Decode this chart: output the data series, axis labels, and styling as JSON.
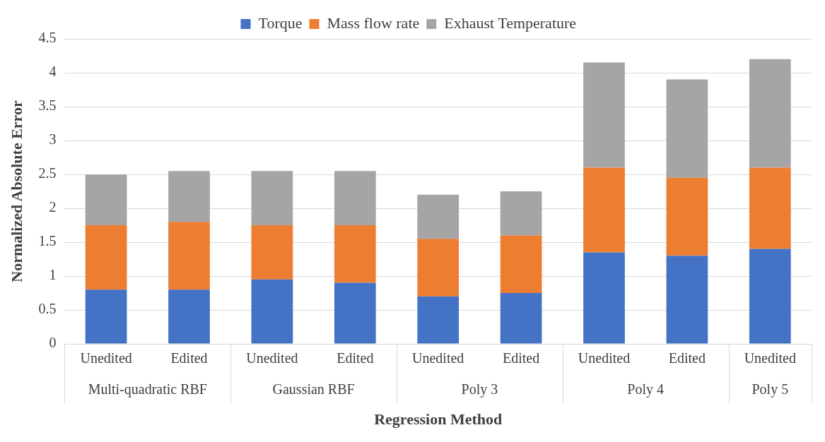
{
  "chart_data": {
    "type": "bar",
    "stacked": true,
    "xlabel": "Regression Method",
    "ylabel": "Normalized Absolute Error",
    "categories": [
      "Unedited",
      "Edited",
      "Unedited",
      "Edited",
      "Unedited",
      "Edited",
      "Unedited",
      "Edited",
      "Unedited"
    ],
    "annotations": [
      "Multi-quadratic RBF",
      "Gaussian RBF",
      "Poly 3",
      "Poly 4",
      "Poly 5"
    ],
    "series": [
      {
        "name": "Torque",
        "color": "#4472c4",
        "values": [
          0.8,
          0.8,
          0.95,
          0.9,
          0.7,
          0.75,
          1.35,
          1.3,
          1.4
        ]
      },
      {
        "name": "Mass flow rate",
        "color": "#ed7d31",
        "values": [
          0.95,
          1.0,
          0.8,
          0.85,
          0.85,
          0.85,
          1.25,
          1.15,
          1.2
        ]
      },
      {
        "name": "Exhaust Temperature",
        "color": "#a5a5a5",
        "values": [
          0.75,
          0.75,
          0.8,
          0.8,
          0.65,
          0.65,
          1.55,
          1.45,
          1.6
        ]
      }
    ],
    "ylim": [
      0,
      4.5
    ],
    "yticks": [
      0,
      0.5,
      1,
      1.5,
      2,
      2.5,
      3,
      3.5,
      4,
      4.5
    ],
    "grid": "y",
    "legend": "top"
  }
}
